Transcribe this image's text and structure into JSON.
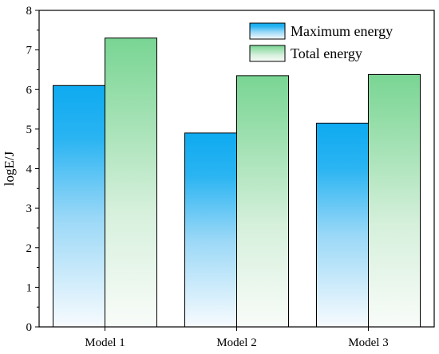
{
  "chart_data": {
    "type": "bar",
    "categories": [
      "Model 1",
      "Model 2",
      "Model 3"
    ],
    "series": [
      {
        "name": "Maximum energy",
        "values": [
          6.1,
          4.9,
          5.15
        ],
        "color": "#1ab0f0"
      },
      {
        "name": "Total energy",
        "values": [
          7.3,
          6.35,
          6.38
        ],
        "color": "#7ed696"
      }
    ],
    "title": "",
    "xlabel": "",
    "ylabel": "logE/J",
    "ylim": [
      0,
      8
    ],
    "yticks": [
      0,
      1,
      2,
      3,
      4,
      5,
      6,
      7,
      8
    ],
    "grid": false,
    "legend_position": "top-right"
  }
}
